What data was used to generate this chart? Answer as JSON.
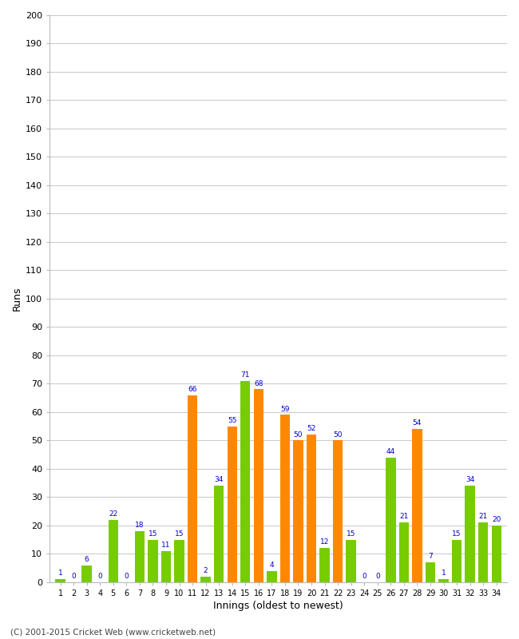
{
  "innings": [
    1,
    2,
    3,
    4,
    5,
    6,
    7,
    8,
    9,
    10,
    11,
    12,
    13,
    14,
    15,
    16,
    17,
    18,
    19,
    20,
    21,
    22,
    23,
    24,
    25,
    26,
    27,
    28,
    29,
    30,
    31,
    32,
    33,
    34
  ],
  "values": [
    1,
    0,
    6,
    0,
    22,
    0,
    18,
    15,
    11,
    15,
    66,
    2,
    34,
    55,
    71,
    68,
    4,
    59,
    50,
    52,
    12,
    50,
    15,
    0,
    0,
    44,
    21,
    54,
    7,
    1,
    15,
    34,
    21,
    20
  ],
  "colors": [
    "#77cc00",
    "#77cc00",
    "#77cc00",
    "#77cc00",
    "#77cc00",
    "#77cc00",
    "#77cc00",
    "#77cc00",
    "#77cc00",
    "#77cc00",
    "#ff8800",
    "#77cc00",
    "#77cc00",
    "#ff8800",
    "#77cc00",
    "#ff8800",
    "#77cc00",
    "#ff8800",
    "#ff8800",
    "#ff8800",
    "#77cc00",
    "#ff8800",
    "#77cc00",
    "#77cc00",
    "#77cc00",
    "#77cc00",
    "#77cc00",
    "#ff8800",
    "#77cc00",
    "#77cc00",
    "#77cc00",
    "#77cc00",
    "#77cc00",
    "#77cc00"
  ],
  "xlabel": "Innings (oldest to newest)",
  "ylabel": "Runs",
  "ylim": [
    0,
    200
  ],
  "yticks": [
    0,
    10,
    20,
    30,
    40,
    50,
    60,
    70,
    80,
    90,
    100,
    110,
    120,
    130,
    140,
    150,
    160,
    170,
    180,
    190,
    200
  ],
  "bg_color": "#ffffff",
  "grid_color": "#cccccc",
  "label_color": "#0000cc",
  "footer": "(C) 2001-2015 Cricket Web (www.cricketweb.net)",
  "figsize": [
    6.5,
    8.0
  ],
  "dpi": 100
}
